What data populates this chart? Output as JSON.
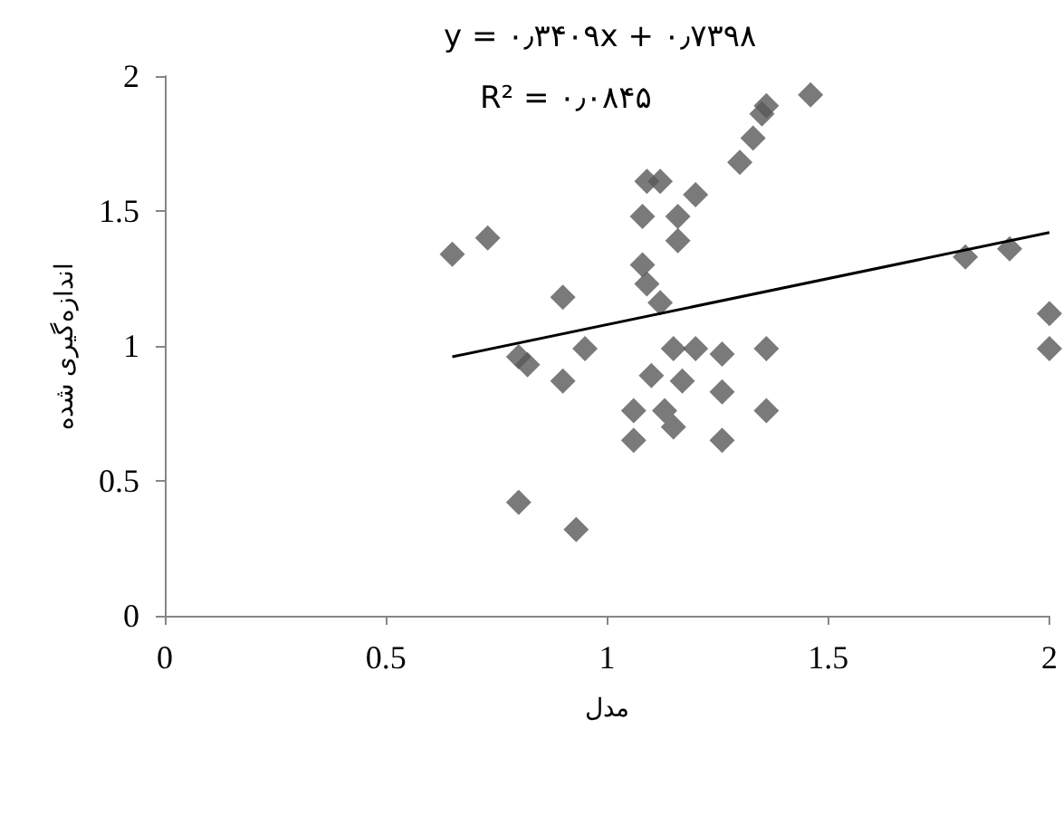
{
  "chart_data": {
    "type": "scatter",
    "xlabel": "مدل",
    "ylabel": "اندازه‌گیری شده",
    "xlim": [
      0,
      2
    ],
    "ylim": [
      0,
      2
    ],
    "xticks": [
      0,
      0.5,
      1,
      1.5,
      2
    ],
    "yticks": [
      0,
      0.5,
      1,
      1.5,
      2
    ],
    "grid": false,
    "marker": "diamond",
    "annotations": [
      "y = ۰٫۳۴۰۹x + ۰٫۷۳۹۸",
      "R² = ۰٫۰۸۴۵"
    ],
    "series": [
      {
        "color": "#595959",
        "x": [
          0.65,
          0.73,
          0.9,
          0.8,
          0.82,
          0.95,
          0.9,
          1.09,
          1.12,
          1.08,
          1.2,
          1.16,
          1.16,
          1.08,
          1.09,
          1.12,
          1.3,
          1.33,
          1.35,
          1.36,
          1.46,
          1.15,
          1.2,
          1.26,
          1.1,
          1.17,
          1.26,
          1.06,
          1.13,
          1.15,
          1.06,
          1.26,
          0.8,
          0.93,
          1.36,
          1.36,
          1.81,
          1.91,
          2.0,
          2.0
        ],
        "values": [
          1.34,
          1.4,
          1.18,
          0.96,
          0.93,
          0.99,
          0.87,
          1.61,
          1.61,
          1.48,
          1.56,
          1.48,
          1.39,
          1.3,
          1.23,
          1.16,
          1.68,
          1.77,
          1.86,
          1.89,
          1.93,
          0.99,
          0.99,
          0.97,
          0.89,
          0.87,
          0.83,
          0.76,
          0.76,
          0.7,
          0.65,
          0.65,
          0.42,
          0.32,
          0.99,
          0.76,
          1.33,
          1.36,
          1.12,
          0.99
        ]
      },
      {
        "type": "line",
        "marker": "none",
        "color": "#000000",
        "x": [
          0.65,
          2.0
        ],
        "values": [
          0.96,
          1.42
        ]
      }
    ]
  }
}
